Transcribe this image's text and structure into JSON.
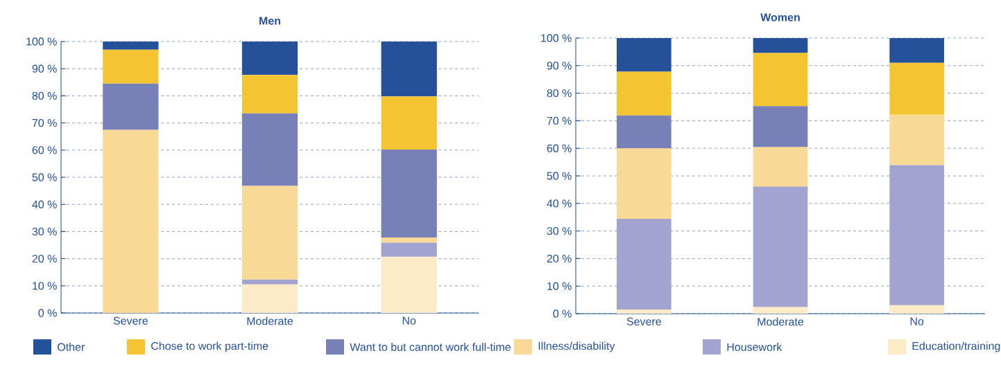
{
  "chart_data": [
    {
      "type": "bar",
      "title": "Men",
      "stacked": true,
      "grid": "y",
      "legend": "bottom",
      "categories": [
        "Severe",
        "Moderate",
        "No"
      ],
      "ylim": [
        0,
        100
      ],
      "yticks": [
        {
          "value": 0,
          "label": "0 %"
        },
        {
          "value": 10,
          "label": "10 %"
        },
        {
          "value": 20,
          "label": "20 %"
        },
        {
          "value": 30,
          "label": "30 %"
        },
        {
          "value": 40,
          "label": "40 %"
        },
        {
          "value": 50,
          "label": "50 %"
        },
        {
          "value": 60,
          "label": "60 %"
        },
        {
          "value": 70,
          "label": "70 %"
        },
        {
          "value": 80,
          "label": "80 %"
        },
        {
          "value": 90,
          "label": "90 %"
        },
        {
          "value": 100,
          "label": "100 %"
        }
      ],
      "series": [
        {
          "name": "Education/training",
          "color": "#fdebc8",
          "values": [
            0,
            10.5,
            20.7
          ]
        },
        {
          "name": "Housework",
          "color": "#a2a3ce",
          "values": [
            0,
            1.8,
            5.2
          ]
        },
        {
          "name": "Illness/disability",
          "color": "#f8da96",
          "values": [
            67.5,
            34.5,
            1.9
          ]
        },
        {
          "name": "Want to but cannot work full-time",
          "color": "#7880b8",
          "values": [
            17,
            26.7,
            32.4
          ]
        },
        {
          "name": "Chose to work part-time",
          "color": "#f4c432",
          "values": [
            12.5,
            14.2,
            19.6
          ]
        },
        {
          "name": "Other",
          "color": "#25509a",
          "values": [
            3,
            12.3,
            20.2
          ]
        }
      ]
    },
    {
      "type": "bar",
      "title": "Women",
      "stacked": true,
      "grid": "y",
      "categories": [
        "Severe",
        "Moderate",
        "No"
      ],
      "ylim": [
        0,
        100
      ],
      "yticks": [
        {
          "value": 0,
          "label": "0 %"
        },
        {
          "value": 10,
          "label": "10 %"
        },
        {
          "value": 20,
          "label": "20 %"
        },
        {
          "value": 30,
          "label": "30 %"
        },
        {
          "value": 40,
          "label": "40 %"
        },
        {
          "value": 50,
          "label": "50 %"
        },
        {
          "value": 60,
          "label": "60 %"
        },
        {
          "value": 70,
          "label": "70 %"
        },
        {
          "value": 80,
          "label": "80 %"
        },
        {
          "value": 90,
          "label": "90 %"
        },
        {
          "value": 100,
          "label": "100 %"
        }
      ],
      "series": [
        {
          "color": "#fdebc8",
          "values": [
            1.5,
            2.4,
            3.1
          ]
        },
        {
          "color": "#a2a3ce",
          "values": [
            32.9,
            43.7,
            50.8
          ]
        },
        {
          "color": "#f8da96",
          "values": [
            25.6,
            14.3,
            18.3
          ]
        },
        {
          "color": "#7880b8",
          "values": [
            11.9,
            14.9,
            0
          ]
        },
        {
          "color": "#f4c432",
          "values": [
            15.9,
            19.3,
            18.8
          ]
        },
        {
          "color": "#25509a",
          "values": [
            12.2,
            5.4,
            9
          ]
        }
      ]
    }
  ]
}
